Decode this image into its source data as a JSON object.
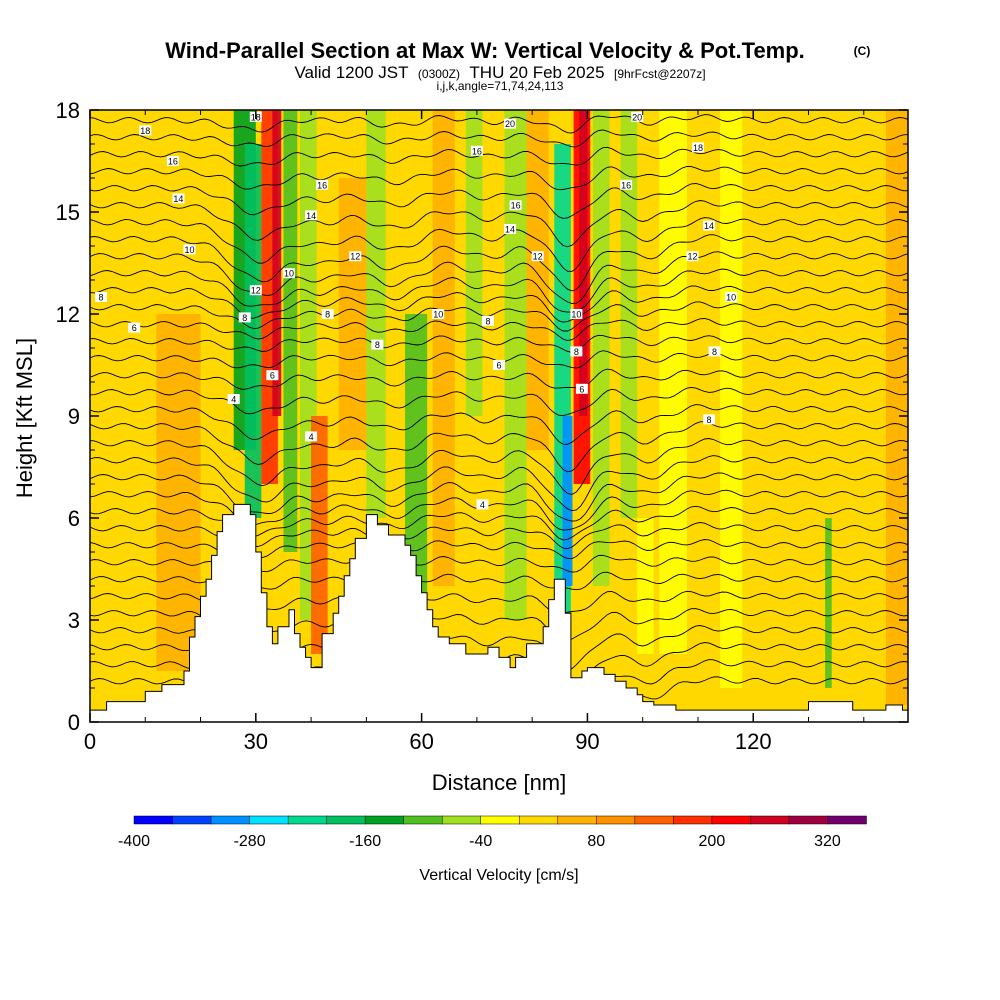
{
  "titles": {
    "main": "Wind-Parallel Section at Max W: Vertical Velocity & Pot.Temp.",
    "copyright": "(C)",
    "valid_a": "Valid 1200 JST",
    "valid_utc": "(0300Z)",
    "valid_b": "THU 20 Feb 2025",
    "fcst": "[9hrFcst@2207z]",
    "params": "i,j,k,angle=71,74,24,113"
  },
  "chart_data": {
    "type": "heatmap",
    "xlabel": "Distance [nm]",
    "ylabel": "Height [Kft MSL]",
    "xlim": [
      0,
      148
    ],
    "ylim": [
      0,
      18
    ],
    "x_ticks": [
      0,
      30,
      60,
      90,
      120
    ],
    "x_minor": [
      10,
      20,
      40,
      50,
      70,
      80,
      100,
      110,
      130,
      140
    ],
    "y_ticks": [
      0,
      3,
      6,
      9,
      12,
      15,
      18
    ],
    "y_minor": [
      1,
      2,
      4,
      5,
      7,
      8,
      10,
      11,
      13,
      14,
      16,
      17
    ],
    "colorbar": {
      "label": "Vertical Velocity [cm/s]",
      "min": -400,
      "max": 340,
      "step": 40,
      "tick_labels": [
        -400,
        -280,
        -160,
        -40,
        80,
        200,
        320
      ],
      "colors": [
        "#0000ff",
        "#0040ff",
        "#0090ff",
        "#00e0ff",
        "#00d890",
        "#00c060",
        "#00a020",
        "#50c020",
        "#a0e020",
        "#ffff00",
        "#ffd800",
        "#ffb000",
        "#ff9000",
        "#ff6000",
        "#ff3000",
        "#ff0000",
        "#d00020",
        "#a00040",
        "#700070"
      ]
    },
    "terrain": [
      [
        0,
        0.35
      ],
      [
        3,
        0.35
      ],
      [
        3,
        0.6
      ],
      [
        10,
        0.6
      ],
      [
        10,
        0.9
      ],
      [
        13,
        0.9
      ],
      [
        13,
        1.1
      ],
      [
        17,
        1.1
      ],
      [
        17,
        1.5
      ],
      [
        18,
        1.5
      ],
      [
        18,
        2.5
      ],
      [
        19,
        2.5
      ],
      [
        19,
        3.1
      ],
      [
        20,
        3.1
      ],
      [
        20,
        3.7
      ],
      [
        21,
        3.7
      ],
      [
        21,
        4.2
      ],
      [
        22,
        4.2
      ],
      [
        22,
        4.9
      ],
      [
        23,
        4.9
      ],
      [
        23,
        5.6
      ],
      [
        24,
        5.6
      ],
      [
        24,
        6.1
      ],
      [
        26,
        6.1
      ],
      [
        26,
        6.4
      ],
      [
        29,
        6.4
      ],
      [
        29,
        6.1
      ],
      [
        30,
        6.1
      ],
      [
        30,
        5.0
      ],
      [
        31,
        5.0
      ],
      [
        31,
        3.8
      ],
      [
        32,
        3.8
      ],
      [
        32,
        2.8
      ],
      [
        33,
        2.8
      ],
      [
        33,
        2.3
      ],
      [
        34,
        2.3
      ],
      [
        34,
        2.8
      ],
      [
        36,
        2.8
      ],
      [
        36,
        3.3
      ],
      [
        37,
        3.3
      ],
      [
        37,
        2.6
      ],
      [
        38,
        2.6
      ],
      [
        38,
        2.2
      ],
      [
        39,
        2.2
      ],
      [
        39,
        1.9
      ],
      [
        40,
        1.9
      ],
      [
        40,
        1.6
      ],
      [
        42,
        1.6
      ],
      [
        42,
        2.6
      ],
      [
        44,
        2.6
      ],
      [
        44,
        3.2
      ],
      [
        45,
        3.2
      ],
      [
        45,
        3.7
      ],
      [
        46,
        3.7
      ],
      [
        46,
        4.3
      ],
      [
        47,
        4.3
      ],
      [
        47,
        4.8
      ],
      [
        48,
        4.8
      ],
      [
        48,
        5.4
      ],
      [
        50,
        5.4
      ],
      [
        50,
        6.1
      ],
      [
        52,
        6.1
      ],
      [
        52,
        5.8
      ],
      [
        54,
        5.8
      ],
      [
        54,
        5.5
      ],
      [
        57,
        5.5
      ],
      [
        57,
        5.2
      ],
      [
        58,
        5.2
      ],
      [
        58,
        4.9
      ],
      [
        59,
        4.9
      ],
      [
        59,
        4.3
      ],
      [
        60,
        4.3
      ],
      [
        60,
        3.8
      ],
      [
        61,
        3.8
      ],
      [
        61,
        3.3
      ],
      [
        62,
        3.3
      ],
      [
        62,
        2.8
      ],
      [
        63,
        2.8
      ],
      [
        63,
        2.5
      ],
      [
        65,
        2.5
      ],
      [
        65,
        2.3
      ],
      [
        68,
        2.3
      ],
      [
        68,
        2.0
      ],
      [
        72,
        2.0
      ],
      [
        72,
        2.2
      ],
      [
        74,
        2.2
      ],
      [
        74,
        1.9
      ],
      [
        76,
        1.9
      ],
      [
        76,
        1.6
      ],
      [
        77,
        1.6
      ],
      [
        77,
        1.9
      ],
      [
        79,
        1.9
      ],
      [
        79,
        2.3
      ],
      [
        82,
        2.3
      ],
      [
        82,
        2.8
      ],
      [
        83,
        2.8
      ],
      [
        83,
        3.6
      ],
      [
        84,
        3.6
      ],
      [
        84,
        4.2
      ],
      [
        86,
        4.2
      ],
      [
        86,
        3.2
      ],
      [
        87,
        3.2
      ],
      [
        87,
        1.3
      ],
      [
        89,
        1.3
      ],
      [
        89,
        1.5
      ],
      [
        90,
        1.5
      ],
      [
        90,
        1.6
      ],
      [
        93,
        1.6
      ],
      [
        93,
        1.4
      ],
      [
        95,
        1.4
      ],
      [
        95,
        1.2
      ],
      [
        97,
        1.2
      ],
      [
        97,
        1.0
      ],
      [
        99,
        1.0
      ],
      [
        99,
        0.8
      ],
      [
        100,
        0.8
      ],
      [
        100,
        0.6
      ],
      [
        102,
        0.6
      ],
      [
        102,
        0.5
      ],
      [
        106,
        0.5
      ],
      [
        106,
        0.35
      ],
      [
        114,
        0.35
      ],
      [
        114,
        0.35
      ],
      [
        120,
        0.35
      ],
      [
        120,
        0.35
      ],
      [
        130,
        0.35
      ],
      [
        130,
        0.6
      ],
      [
        138,
        0.6
      ],
      [
        138,
        0.35
      ],
      [
        144,
        0.35
      ],
      [
        144,
        0.5
      ],
      [
        147,
        0.5
      ],
      [
        147,
        0.35
      ],
      [
        148,
        0.35
      ],
      [
        148,
        0
      ]
    ],
    "vv_bands": [
      {
        "x": 2,
        "w": 6,
        "h": [
          0,
          18
        ],
        "v": 20
      },
      {
        "x": 12,
        "w": 8,
        "h": [
          1.5,
          12
        ],
        "v": 40
      },
      {
        "x": 26,
        "w": 4,
        "h": [
          8,
          18
        ],
        "v": -140
      },
      {
        "x": 28,
        "w": 3,
        "h": [
          6,
          17
        ],
        "v": -180
      },
      {
        "x": 31,
        "w": 3,
        "h": [
          7,
          18
        ],
        "v": 180
      },
      {
        "x": 33,
        "w": 1.6,
        "h": [
          9,
          18
        ],
        "v": 240
      },
      {
        "x": 35,
        "w": 2.5,
        "h": [
          5,
          18
        ],
        "v": -100
      },
      {
        "x": 38,
        "w": 3,
        "h": [
          3,
          18
        ],
        "v": -80
      },
      {
        "x": 40,
        "w": 3,
        "h": [
          2,
          9
        ],
        "v": 140
      },
      {
        "x": 45,
        "w": 5,
        "h": [
          8,
          16
        ],
        "v": 60
      },
      {
        "x": 50,
        "w": 3.5,
        "h": [
          6,
          18
        ],
        "v": -80
      },
      {
        "x": 57,
        "w": 4,
        "h": [
          3,
          12
        ],
        "v": -100
      },
      {
        "x": 62,
        "w": 4,
        "h": [
          4,
          18
        ],
        "v": 60
      },
      {
        "x": 68,
        "w": 3,
        "h": [
          9,
          18
        ],
        "v": -60
      },
      {
        "x": 75,
        "w": 4,
        "h": [
          3,
          18
        ],
        "v": -80
      },
      {
        "x": 79,
        "w": 4,
        "h": [
          8,
          18
        ],
        "v": 60
      },
      {
        "x": 84,
        "w": 3,
        "h": [
          2,
          17
        ],
        "v": -220
      },
      {
        "x": 85.5,
        "w": 1.8,
        "h": [
          4,
          9
        ],
        "v": -300
      },
      {
        "x": 87.5,
        "w": 3,
        "h": [
          7,
          18
        ],
        "v": 200
      },
      {
        "x": 88.5,
        "w": 1.5,
        "h": [
          9,
          18
        ],
        "v": 260
      },
      {
        "x": 91,
        "w": 3,
        "h": [
          4,
          18
        ],
        "v": -60
      },
      {
        "x": 96,
        "w": 3,
        "h": [
          6,
          18
        ],
        "v": -80
      },
      {
        "x": 99,
        "w": 3,
        "h": [
          2,
          6
        ],
        "v": -20
      },
      {
        "x": 103,
        "w": 5,
        "h": [
          2,
          18
        ],
        "v": -30
      },
      {
        "x": 114,
        "w": 4,
        "h": [
          1,
          18
        ],
        "v": -20
      },
      {
        "x": 133,
        "w": 1.2,
        "h": [
          1,
          6
        ],
        "v": -100
      },
      {
        "x": 144,
        "w": 4,
        "h": [
          0.5,
          18
        ],
        "v": 40
      }
    ],
    "contour_labels": [
      {
        "x": 10,
        "y": 17.4,
        "t": "18"
      },
      {
        "x": 15,
        "y": 16.5,
        "t": "16"
      },
      {
        "x": 16,
        "y": 15.4,
        "t": "14"
      },
      {
        "x": 18,
        "y": 13.9,
        "t": "10"
      },
      {
        "x": 2,
        "y": 12.5,
        "t": "8"
      },
      {
        "x": 8,
        "y": 11.6,
        "t": "6"
      },
      {
        "x": 30,
        "y": 17.8,
        "t": "18"
      },
      {
        "x": 42,
        "y": 15.8,
        "t": "16"
      },
      {
        "x": 40,
        "y": 14.9,
        "t": "14"
      },
      {
        "x": 48,
        "y": 13.7,
        "t": "12"
      },
      {
        "x": 30,
        "y": 12.7,
        "t": "12"
      },
      {
        "x": 28,
        "y": 11.9,
        "t": "8"
      },
      {
        "x": 36,
        "y": 13.2,
        "t": "10"
      },
      {
        "x": 43,
        "y": 12,
        "t": "8"
      },
      {
        "x": 52,
        "y": 11.1,
        "t": "8"
      },
      {
        "x": 33,
        "y": 10.2,
        "t": "6"
      },
      {
        "x": 26,
        "y": 9.5,
        "t": "4"
      },
      {
        "x": 40,
        "y": 8.4,
        "t": "4"
      },
      {
        "x": 76,
        "y": 17.6,
        "t": "20"
      },
      {
        "x": 70,
        "y": 16.8,
        "t": "16"
      },
      {
        "x": 77,
        "y": 15.2,
        "t": "16"
      },
      {
        "x": 76,
        "y": 14.5,
        "t": "14"
      },
      {
        "x": 81,
        "y": 13.7,
        "t": "12"
      },
      {
        "x": 63,
        "y": 12,
        "t": "10"
      },
      {
        "x": 72,
        "y": 11.8,
        "t": "8"
      },
      {
        "x": 74,
        "y": 10.5,
        "t": "6"
      },
      {
        "x": 71,
        "y": 6.4,
        "t": "4"
      },
      {
        "x": 88,
        "y": 12,
        "t": "10"
      },
      {
        "x": 88,
        "y": 10.9,
        "t": "8"
      },
      {
        "x": 89,
        "y": 9.8,
        "t": "6"
      },
      {
        "x": 99,
        "y": 17.8,
        "t": "20"
      },
      {
        "x": 110,
        "y": 16.9,
        "t": "18"
      },
      {
        "x": 97,
        "y": 15.8,
        "t": "16"
      },
      {
        "x": 112,
        "y": 14.6,
        "t": "14"
      },
      {
        "x": 109,
        "y": 13.7,
        "t": "12"
      },
      {
        "x": 116,
        "y": 12.5,
        "t": "10"
      },
      {
        "x": 113,
        "y": 10.9,
        "t": "8"
      },
      {
        "x": 112,
        "y": 8.9,
        "t": "8"
      }
    ]
  }
}
